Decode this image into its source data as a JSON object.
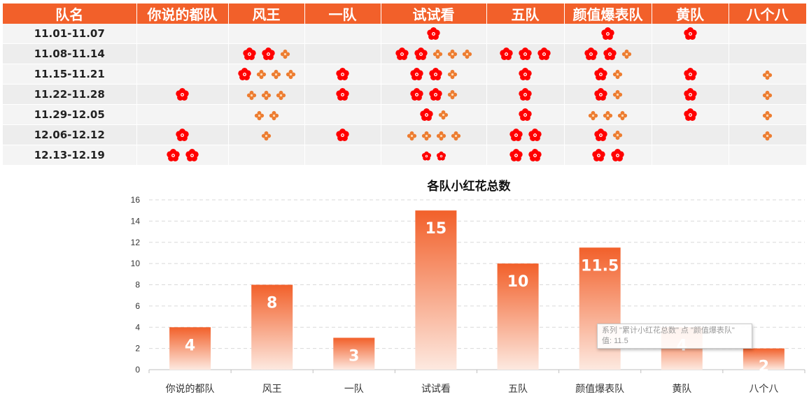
{
  "table": {
    "header_label": "队名",
    "teams": [
      "你说的都队",
      "风王",
      "一队",
      "试试看",
      "五队",
      "颜值爆表队",
      "黄队",
      "八个八"
    ],
    "legend": {
      "R": "red-flower",
      "O": "orange-small-flower",
      "S": "small-red-flower"
    },
    "rows": [
      {
        "week": "11.01-11.07",
        "cells": [
          "",
          "",
          "",
          "R",
          "",
          "R",
          "R",
          ""
        ]
      },
      {
        "week": "11.08-11.14",
        "cells": [
          "",
          "RRO",
          "",
          "RROOO",
          "RRR",
          "RRO",
          "",
          ""
        ]
      },
      {
        "week": "11.15-11.21",
        "cells": [
          "",
          "ROOO",
          "R",
          "RRO",
          "R",
          "RO",
          "R",
          "O"
        ]
      },
      {
        "week": "11.22-11.28",
        "cells": [
          "R",
          "OOO",
          "R",
          "RRO",
          "R",
          "RO",
          "R",
          "O"
        ]
      },
      {
        "week": "11.29-12.05",
        "cells": [
          "",
          "OO",
          "",
          "RO",
          "R",
          "OOO",
          "R",
          "O"
        ]
      },
      {
        "week": "12.06-12.12",
        "cells": [
          "R",
          "O",
          "R",
          "OOOO",
          "RR",
          "RO",
          "",
          "O"
        ]
      },
      {
        "week": "12.13-12.19",
        "cells": [
          "RR",
          "",
          "",
          "SS",
          "RR",
          "RR",
          "",
          ""
        ]
      }
    ]
  },
  "chart_data": {
    "type": "bar",
    "title": "各队小红花总数",
    "categories": [
      "你说的都队",
      "风王",
      "一队",
      "试试看",
      "五队",
      "颜值爆表队",
      "黄队",
      "八个八"
    ],
    "series": [
      {
        "name": "累计小红花总数",
        "values": [
          4,
          8,
          3,
          15,
          10,
          11.5,
          4,
          2
        ]
      }
    ],
    "ylim": [
      0,
      16
    ],
    "yticks": [
      0,
      2,
      4,
      6,
      8,
      10,
      12,
      14,
      16
    ],
    "grid": true,
    "data_labels": true,
    "colors": {
      "bar_top": "#f2602a",
      "bar_bottom": "#fde9e0",
      "grid": "#d9d9d9",
      "label": "#ffffff"
    }
  },
  "tooltip": {
    "line1": "系列 \"累计小红花总数\" 点 \"颜值爆表队\"",
    "line2": "值: 11.5"
  },
  "colors": {
    "header_bg": "#f2602a",
    "flower_red": "#ff0000",
    "flower_orange": "#ed7d31"
  }
}
